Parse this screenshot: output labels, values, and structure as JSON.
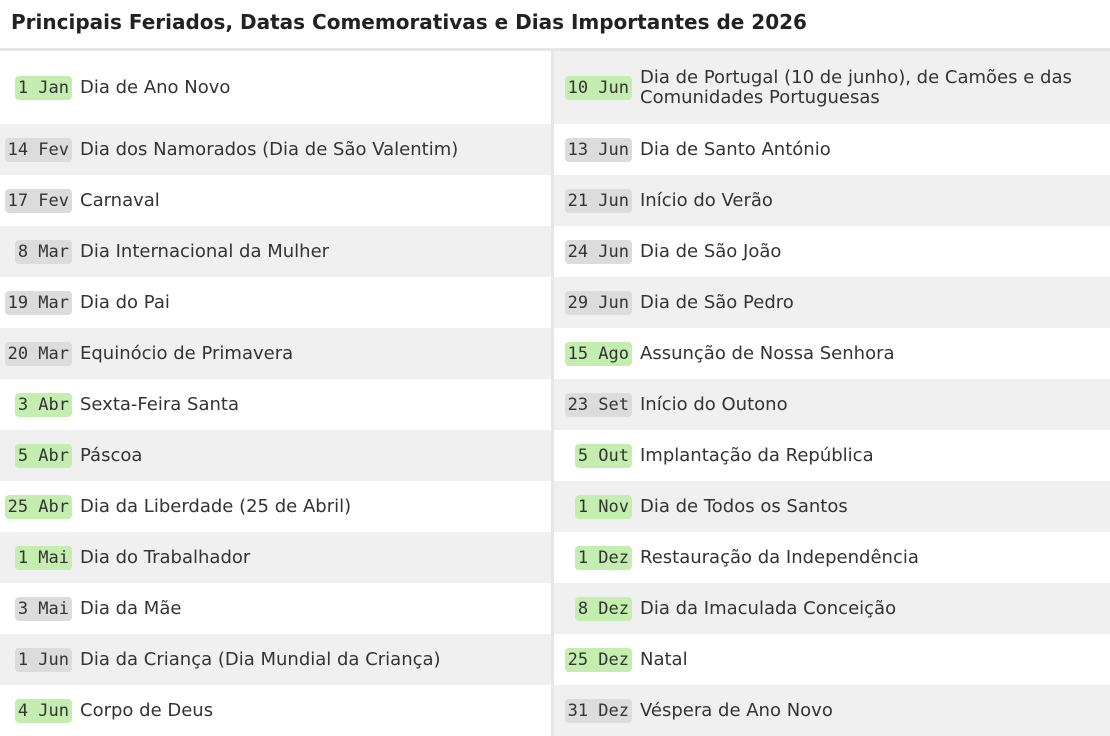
{
  "title": "Principais Feriados, Datas Comemorativas e Dias Importantes de 2026",
  "columns": [
    [
      {
        "date": "1 Jan",
        "name": "Dia de Ano Novo",
        "holiday": true
      },
      {
        "date": "14 Fev",
        "name": "Dia dos Namorados (Dia de São Valentim)",
        "holiday": false
      },
      {
        "date": "17 Fev",
        "name": "Carnaval",
        "holiday": false
      },
      {
        "date": "8 Mar",
        "name": "Dia Internacional da Mulher",
        "holiday": false
      },
      {
        "date": "19 Mar",
        "name": "Dia do Pai",
        "holiday": false
      },
      {
        "date": "20 Mar",
        "name": "Equinócio de Primavera",
        "holiday": false
      },
      {
        "date": "3 Abr",
        "name": "Sexta-Feira Santa",
        "holiday": true
      },
      {
        "date": "5 Abr",
        "name": "Páscoa",
        "holiday": true
      },
      {
        "date": "25 Abr",
        "name": "Dia da Liberdade (25 de Abril)",
        "holiday": true
      },
      {
        "date": "1 Mai",
        "name": "Dia do Trabalhador",
        "holiday": true
      },
      {
        "date": "3 Mai",
        "name": "Dia da Mãe",
        "holiday": false
      },
      {
        "date": "1 Jun",
        "name": "Dia da Criança (Dia Mundial da Criança)",
        "holiday": false
      },
      {
        "date": "4 Jun",
        "name": "Corpo de Deus",
        "holiday": true
      }
    ],
    [
      {
        "date": "10 Jun",
        "name": "Dia de Portugal (10 de junho), de Camões e das Comunidades Portuguesas",
        "holiday": true
      },
      {
        "date": "13 Jun",
        "name": "Dia de Santo António",
        "holiday": false
      },
      {
        "date": "21 Jun",
        "name": "Início do Verão",
        "holiday": false
      },
      {
        "date": "24 Jun",
        "name": "Dia de São João",
        "holiday": false
      },
      {
        "date": "29 Jun",
        "name": "Dia de São Pedro",
        "holiday": false
      },
      {
        "date": "15 Ago",
        "name": "Assunção de Nossa Senhora",
        "holiday": true
      },
      {
        "date": "23 Set",
        "name": "Início do Outono",
        "holiday": false
      },
      {
        "date": "5 Out",
        "name": "Implantação da República",
        "holiday": true
      },
      {
        "date": "1 Nov",
        "name": "Dia de Todos os Santos",
        "holiday": true
      },
      {
        "date": "1 Dez",
        "name": "Restauração da Independência",
        "holiday": true
      },
      {
        "date": "8 Dez",
        "name": "Dia da Imaculada Conceição",
        "holiday": true
      },
      {
        "date": "25 Dez",
        "name": "Natal",
        "holiday": true
      },
      {
        "date": "31 Dez",
        "name": "Véspera de Ano Novo",
        "holiday": false
      }
    ]
  ]
}
